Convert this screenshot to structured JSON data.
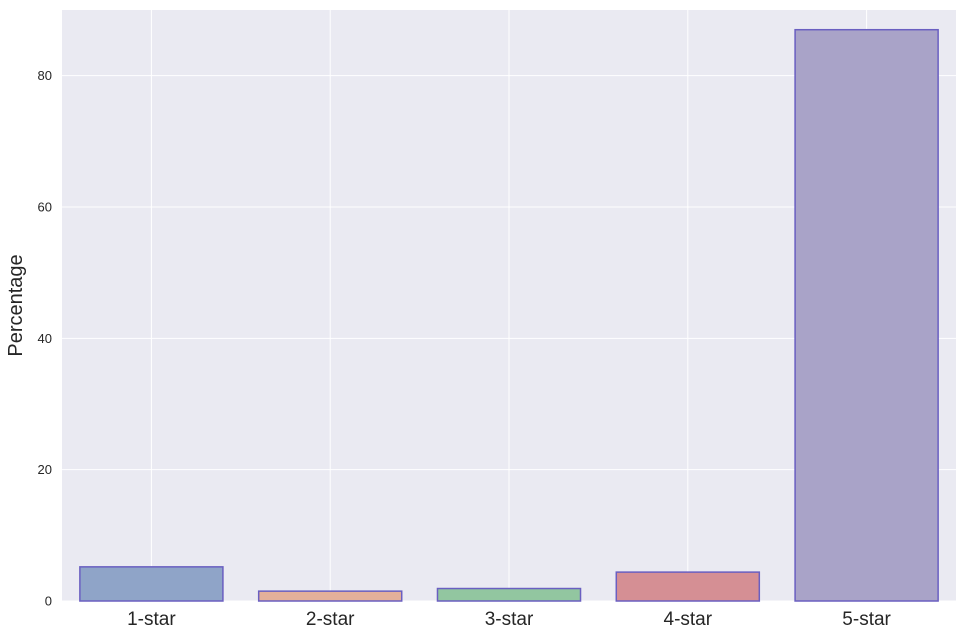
{
  "chart_data": {
    "type": "bar",
    "title": "",
    "xlabel": "",
    "ylabel": "Percentage",
    "categories": [
      "1-star",
      "2-star",
      "3-star",
      "4-star",
      "5-star"
    ],
    "values": [
      5.2,
      1.5,
      1.9,
      4.4,
      87.0
    ],
    "ylim": [
      0,
      90
    ],
    "yticks": [
      0,
      20,
      40,
      60,
      80
    ],
    "grid": true,
    "legend": "none",
    "colors": {
      "background": "#EAEAF2",
      "grid": "#FFFFFF",
      "bar_edge": "#6A5FC1",
      "bars": [
        "#8FA4C8",
        "#E4B09A",
        "#92C6A0",
        "#D58F94",
        "#A9A3C8"
      ]
    }
  }
}
